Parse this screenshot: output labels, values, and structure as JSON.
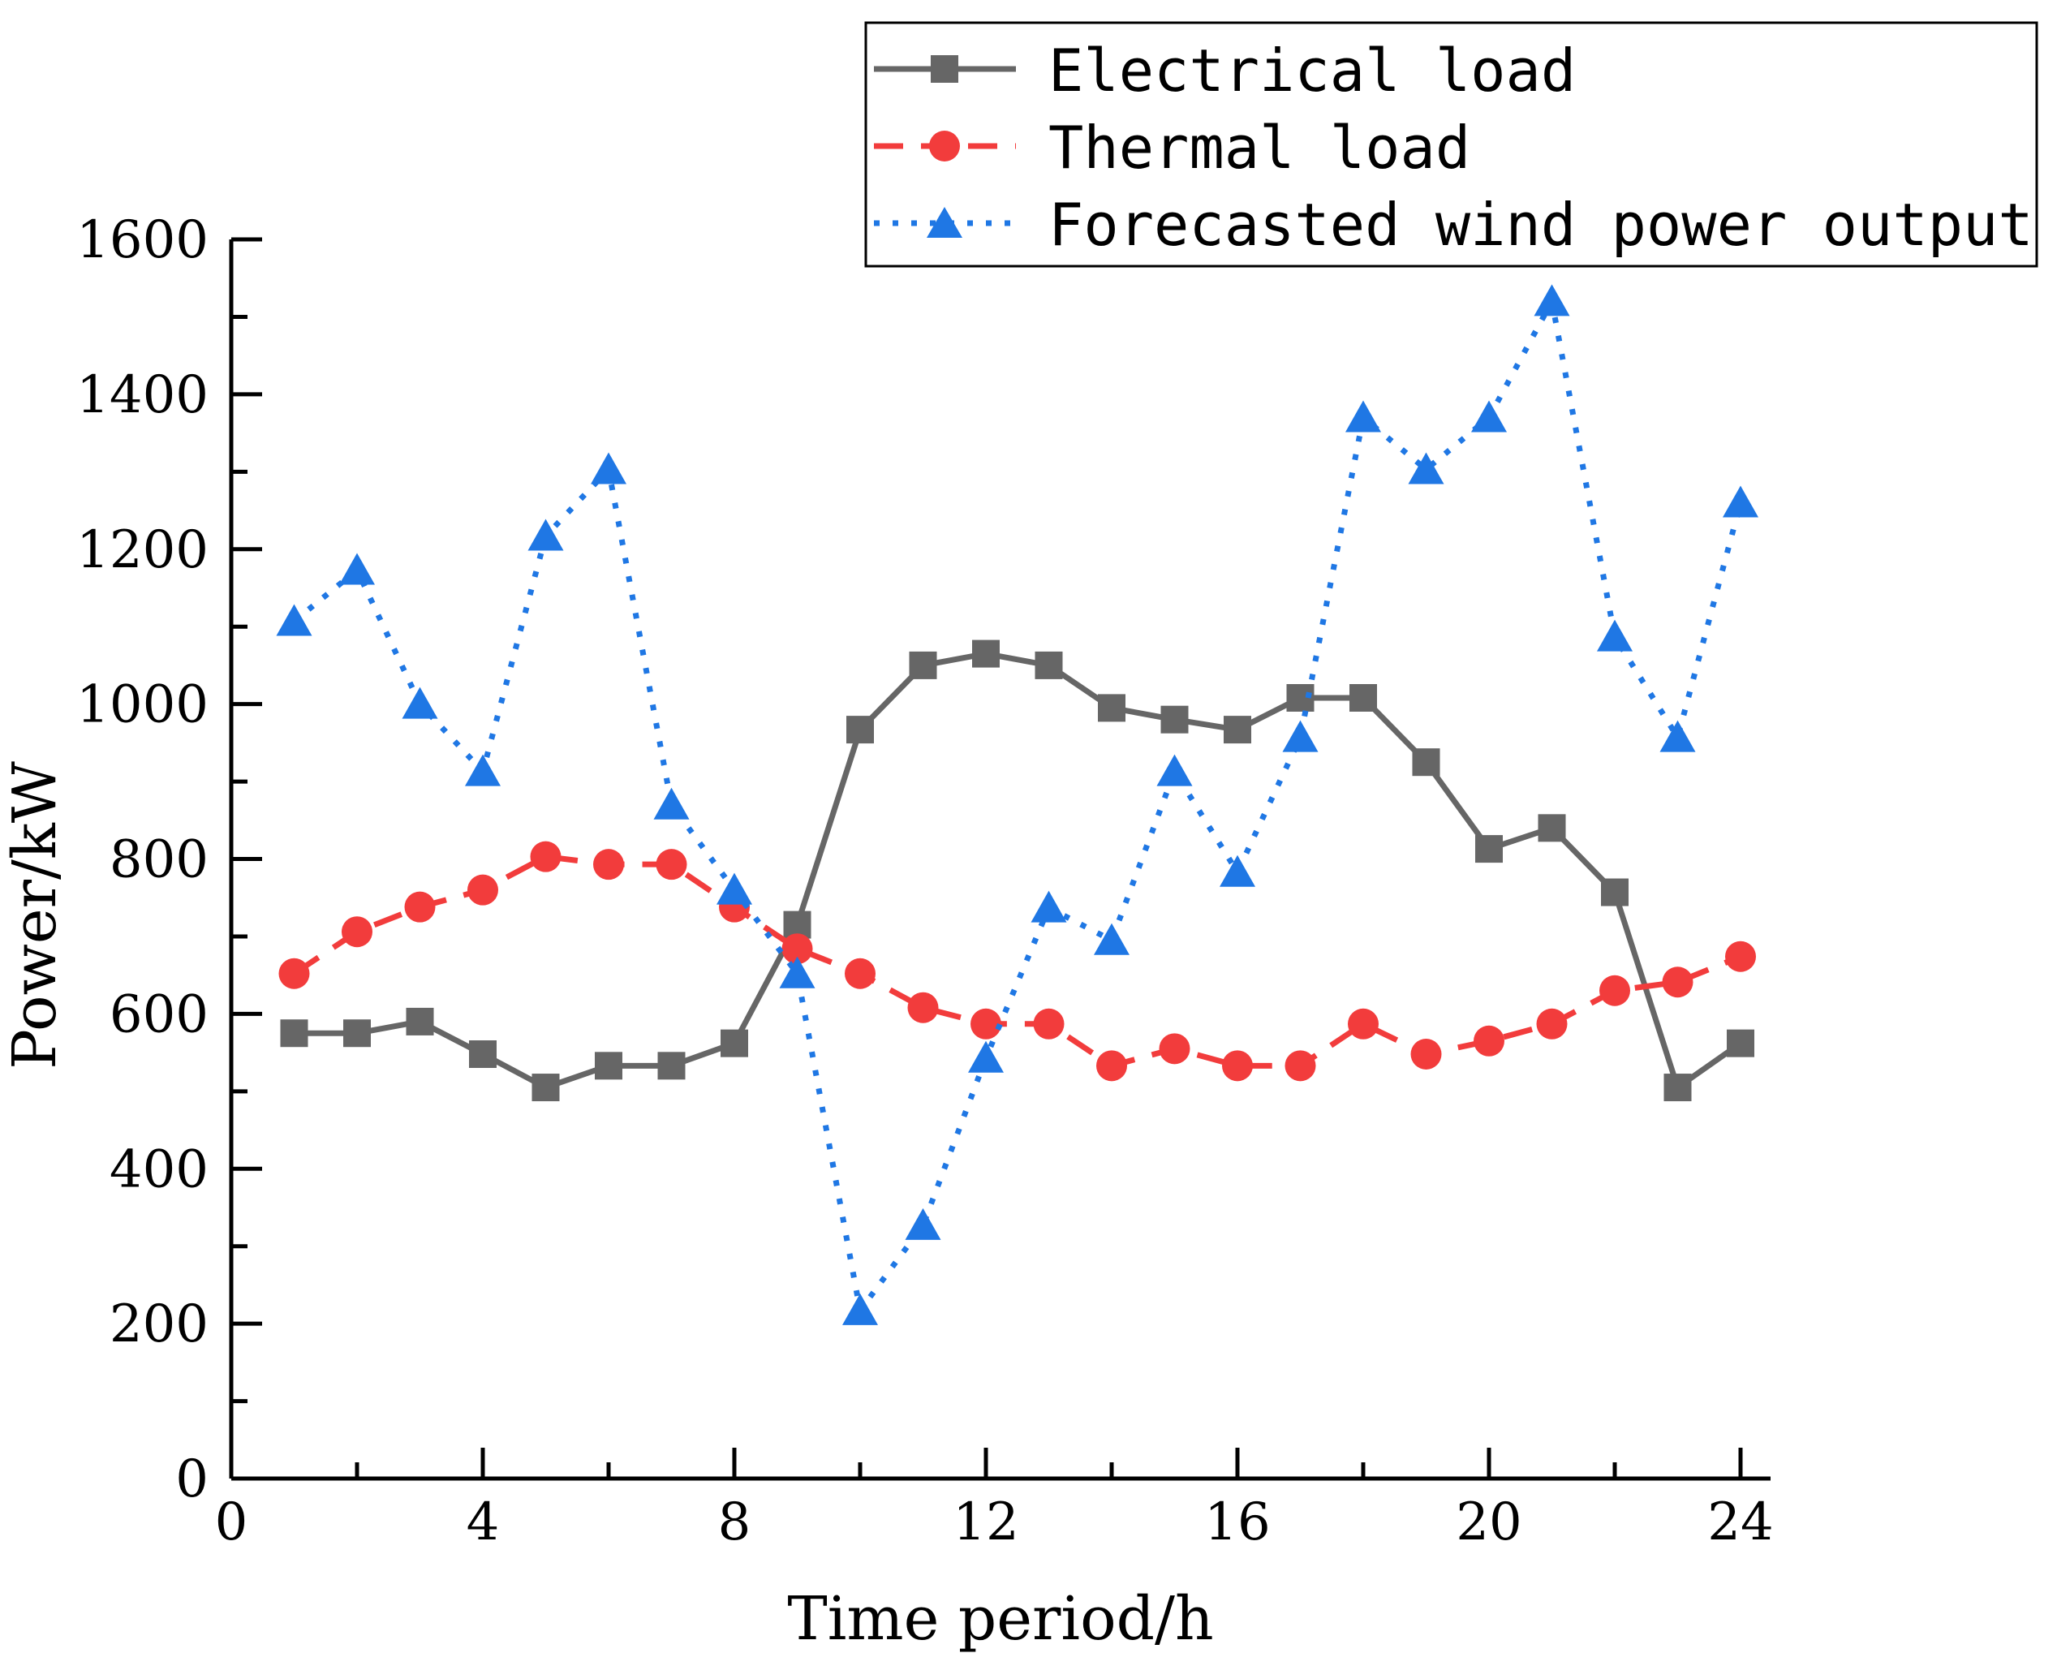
{
  "chart_data": {
    "type": "line",
    "xlabel": "Time period/h",
    "ylabel": "Power/kW",
    "xlim": [
      0,
      24.5
    ],
    "ylim": [
      0,
      1600
    ],
    "xticks": [
      0,
      4,
      8,
      12,
      16,
      20,
      24
    ],
    "yticks": [
      0,
      200,
      400,
      600,
      800,
      1000,
      1200,
      1400,
      1600
    ],
    "grid": false,
    "legend_position": "top-right",
    "x": [
      1,
      2,
      3,
      4,
      5,
      6,
      7,
      8,
      9,
      10,
      11,
      12,
      13,
      14,
      15,
      16,
      17,
      18,
      19,
      20,
      21,
      22,
      23,
      24
    ],
    "series": [
      {
        "name": "Electrical load",
        "color": "#666666",
        "line": "solid",
        "marker": "square",
        "values": [
          575,
          575,
          590,
          548,
          505,
          533,
          533,
          562,
          715,
          967,
          1050,
          1065,
          1050,
          995,
          980,
          967,
          1008,
          1008,
          925,
          813,
          840,
          757,
          505,
          562
        ]
      },
      {
        "name": "Thermal load",
        "color": "#f23c3c",
        "line": "dashed",
        "marker": "circle",
        "values": [
          652,
          706,
          738,
          760,
          803,
          793,
          793,
          738,
          684,
          652,
          608,
          587,
          587,
          533,
          555,
          533,
          533,
          587,
          548,
          565,
          587,
          630,
          641,
          674
        ]
      },
      {
        "name": "Forecasted wind power output",
        "color": "#1f77e4",
        "line": "dotted",
        "marker": "triangle",
        "values": [
          1107,
          1173,
          1000,
          913,
          1217,
          1303,
          870,
          760,
          652,
          217,
          327,
          543,
          737,
          695,
          913,
          783,
          957,
          1370,
          1303,
          1370,
          1520,
          1087,
          957,
          1260
        ]
      }
    ]
  }
}
